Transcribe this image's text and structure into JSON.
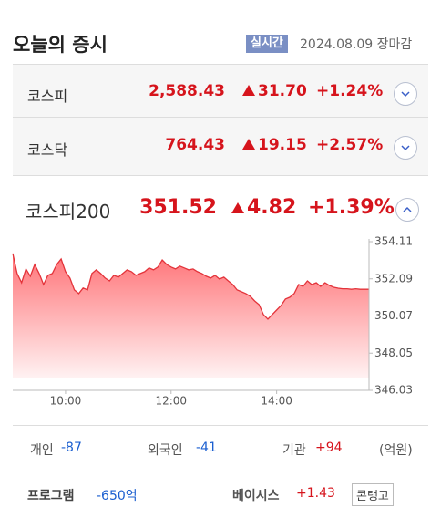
{
  "header": {
    "title": "오늘의 증시",
    "badge": "실시간",
    "date": "2024.08.09",
    "status": "장마감"
  },
  "indices": [
    {
      "name": "코스피",
      "value": "2,588.43",
      "change": "31.70",
      "change_rate": "+1.24%"
    },
    {
      "name": "코스닥",
      "value": "764.43",
      "change": "19.15",
      "change_rate": "+2.57%"
    },
    {
      "name": "코스피200",
      "value": "351.52",
      "change": "4.82",
      "change_rate": "+1.39%"
    }
  ],
  "chart_data": {
    "type": "line",
    "color": "#e3333a",
    "fill_color": "#ff5a5f",
    "reference_line": 346.7,
    "x": [
      540,
      545,
      550,
      555,
      560,
      565,
      570,
      575,
      580,
      585,
      590,
      595,
      600,
      605,
      610,
      615,
      620,
      625,
      630,
      635,
      640,
      645,
      650,
      655,
      660,
      665,
      670,
      675,
      680,
      685,
      690,
      695,
      700,
      705,
      710,
      715,
      720,
      725,
      730,
      735,
      740,
      745,
      750,
      755,
      760,
      765,
      770,
      775,
      780,
      785,
      790,
      795,
      800,
      805,
      810,
      815,
      820,
      825,
      830,
      835,
      840,
      845,
      850,
      855,
      860,
      865,
      870,
      875,
      880,
      885,
      890,
      895,
      900,
      905,
      910,
      915,
      920,
      925,
      930,
      935,
      940,
      945
    ],
    "values": [
      353.47,
      352.38,
      351.88,
      352.63,
      352.23,
      352.87,
      352.38,
      351.78,
      352.28,
      352.38,
      352.87,
      353.17,
      352.48,
      352.13,
      351.49,
      351.29,
      351.59,
      351.49,
      352.38,
      352.58,
      352.38,
      352.13,
      351.98,
      352.28,
      352.18,
      352.38,
      352.58,
      352.48,
      352.28,
      352.38,
      352.48,
      352.68,
      352.58,
      352.73,
      353.12,
      352.87,
      352.73,
      352.63,
      352.78,
      352.68,
      352.58,
      352.63,
      352.48,
      352.38,
      352.23,
      352.13,
      352.28,
      352.08,
      352.18,
      351.98,
      351.78,
      351.49,
      351.39,
      351.29,
      351.14,
      350.89,
      350.69,
      350.15,
      349.9,
      350.15,
      350.39,
      350.64,
      350.99,
      351.09,
      351.29,
      351.78,
      351.68,
      351.98,
      351.78,
      351.88,
      351.68,
      351.88,
      351.73,
      351.63,
      351.58,
      351.55,
      351.55,
      351.52,
      351.55,
      351.52,
      351.52,
      351.52
    ],
    "xlim": [
      540,
      945
    ],
    "xticks": [
      {
        "value": 600,
        "label": "10:00"
      },
      {
        "value": 720,
        "label": "12:00"
      },
      {
        "value": 840,
        "label": "14:00"
      }
    ],
    "ylim": [
      346.03,
      354.11
    ],
    "yticks": [
      346.03,
      348.05,
      350.07,
      352.09,
      354.11
    ]
  },
  "investors": {
    "items": [
      {
        "name": "개인",
        "value": "-87"
      },
      {
        "name": "외국인",
        "value": "-41"
      },
      {
        "name": "기관",
        "value": "+94"
      }
    ],
    "unit": "(억원)"
  },
  "program": {
    "label": "프로그램",
    "value": "-650억"
  },
  "basis": {
    "label": "베이시스",
    "value": "+1.43",
    "state": "콘탱고"
  }
}
